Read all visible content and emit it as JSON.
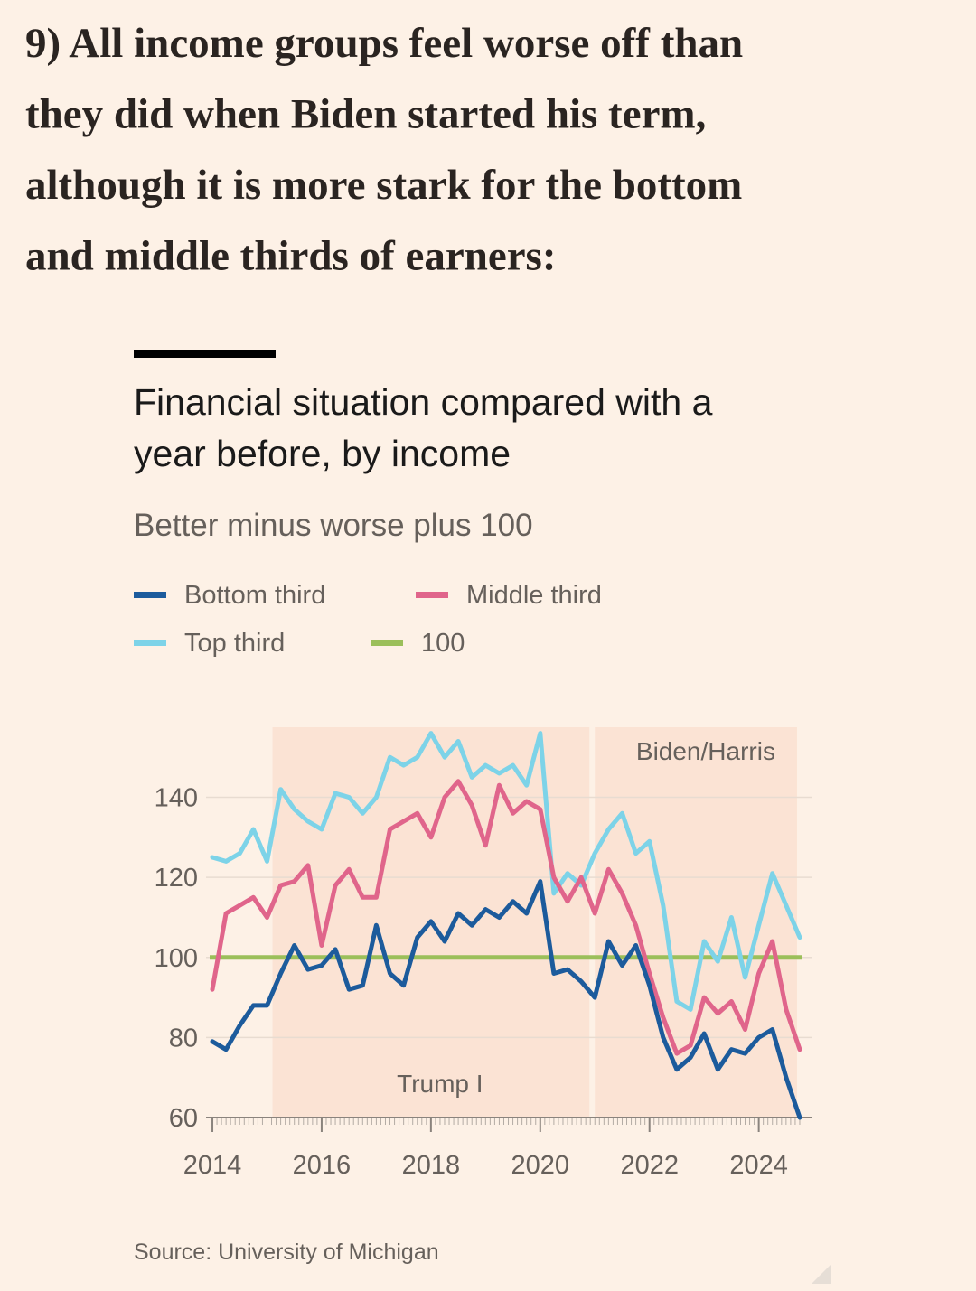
{
  "heading": [
    "9) All income groups feel worse off than",
    "they did when Biden started his term,",
    "although it is more stark for the bottom",
    "and middle thirds of earners:"
  ],
  "chart_data": {
    "type": "line",
    "title": [
      "Financial situation compared with a",
      "year before, by income"
    ],
    "subtitle": "Better minus worse plus 100",
    "x": [
      2014,
      2014.25,
      2014.5,
      2014.75,
      2015,
      2015.25,
      2015.5,
      2015.75,
      2016,
      2016.25,
      2016.5,
      2016.75,
      2017,
      2017.25,
      2017.5,
      2017.75,
      2018,
      2018.25,
      2018.5,
      2018.75,
      2019,
      2019.25,
      2019.5,
      2019.75,
      2020,
      2020.25,
      2020.5,
      2020.75,
      2021,
      2021.25,
      2021.5,
      2021.75,
      2022,
      2022.25,
      2022.5,
      2022.75,
      2023,
      2023.25,
      2023.5,
      2023.75,
      2024,
      2024.25,
      2024.5,
      2024.75
    ],
    "series": [
      {
        "name": "Bottom third",
        "color": "#1c5b9c",
        "values": [
          79,
          77,
          83,
          88,
          88,
          96,
          103,
          97,
          98,
          102,
          92,
          93,
          108,
          96,
          93,
          105,
          109,
          104,
          111,
          108,
          112,
          110,
          114,
          111,
          119,
          96,
          97,
          94,
          90,
          104,
          98,
          103,
          93,
          80,
          72,
          75,
          81,
          72,
          77,
          76,
          80,
          82,
          70,
          60
        ]
      },
      {
        "name": "Middle third",
        "color": "#e0658b",
        "values": [
          92,
          111,
          113,
          115,
          110,
          118,
          119,
          123,
          103,
          118,
          122,
          115,
          115,
          132,
          134,
          136,
          130,
          140,
          144,
          138,
          128,
          143,
          136,
          139,
          137,
          120,
          114,
          120,
          111,
          122,
          116,
          108,
          96,
          85,
          76,
          78,
          90,
          86,
          89,
          82,
          96,
          104,
          87,
          77
        ]
      },
      {
        "name": "Top third",
        "color": "#7dd3e8",
        "values": [
          125,
          124,
          126,
          132,
          124,
          142,
          137,
          134,
          132,
          141,
          140,
          136,
          140,
          150,
          148,
          150,
          156,
          150,
          154,
          145,
          148,
          146,
          148,
          143,
          156,
          116,
          121,
          118,
          126,
          132,
          136,
          126,
          129,
          113,
          89,
          87,
          104,
          99,
          110,
          95,
          108,
          121,
          113,
          105
        ]
      }
    ],
    "reference_line": {
      "name": "100",
      "value": 100,
      "color": "#9bbf5a"
    },
    "shaded_regions": [
      {
        "label": "Trump I",
        "x": [
          2015.1,
          2020.9
        ]
      },
      {
        "label": "Biden/Harris",
        "x": [
          2021.0,
          2024.7
        ]
      }
    ],
    "xlim": [
      2013.95,
      2024.8
    ],
    "xticks": [
      2014,
      2016,
      2018,
      2020,
      2022,
      2024
    ],
    "ylim": [
      60,
      157.5
    ],
    "yticks": [
      60,
      80,
      100,
      120,
      140
    ],
    "grid": true,
    "source": "Source: University of Michigan"
  }
}
